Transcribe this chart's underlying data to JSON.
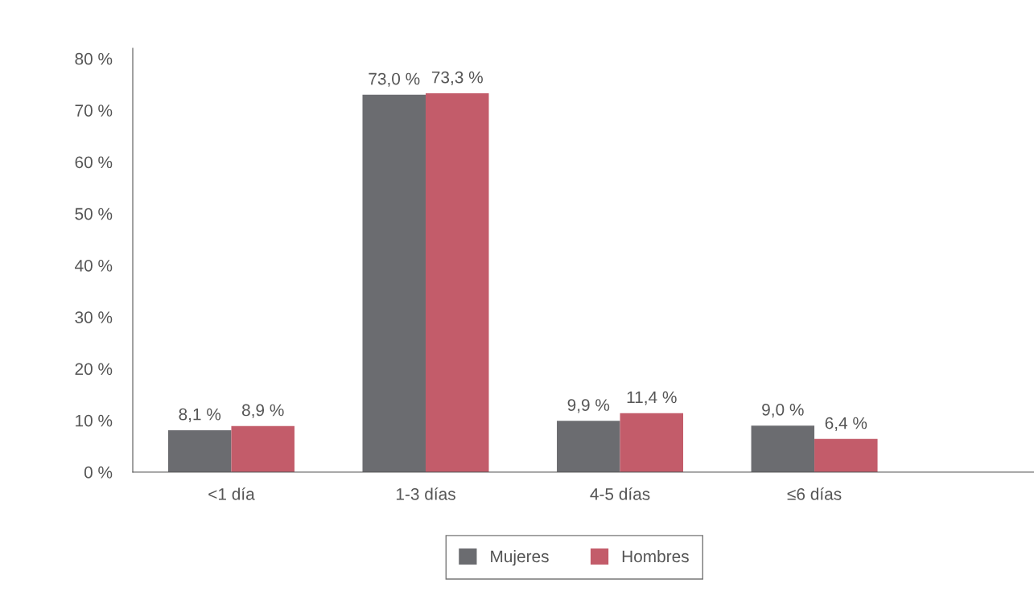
{
  "chart_data": {
    "type": "bar",
    "categories": [
      "<1 día",
      "1-3 días",
      "4-5 días",
      "≤6 días"
    ],
    "series": [
      {
        "name": "Mujeres",
        "color": "#6b6c70",
        "values": [
          8.1,
          73.0,
          9.9,
          9.0
        ],
        "value_labels": [
          "8,1 %",
          "73,0 %",
          "9,9 %",
          "9,0 %"
        ]
      },
      {
        "name": "Hombres",
        "color": "#c35c6a",
        "values": [
          8.9,
          73.3,
          11.4,
          6.4
        ],
        "value_labels": [
          "8,9 %",
          "73,3 %",
          "11,4 %",
          "6,4 %"
        ]
      }
    ],
    "ylim": [
      0,
      82
    ],
    "yticks": [
      {
        "value": 0,
        "label": "0 %"
      },
      {
        "value": 10,
        "label": "10 %"
      },
      {
        "value": 20,
        "label": "20 %"
      },
      {
        "value": 30,
        "label": "30 %"
      },
      {
        "value": 40,
        "label": "40 %"
      },
      {
        "value": 50,
        "label": "50 %"
      },
      {
        "value": 60,
        "label": "60 %"
      },
      {
        "value": 70,
        "label": "70 %"
      },
      {
        "value": 80,
        "label": "80 %"
      }
    ],
    "grid": false,
    "legend": "bottom"
  }
}
